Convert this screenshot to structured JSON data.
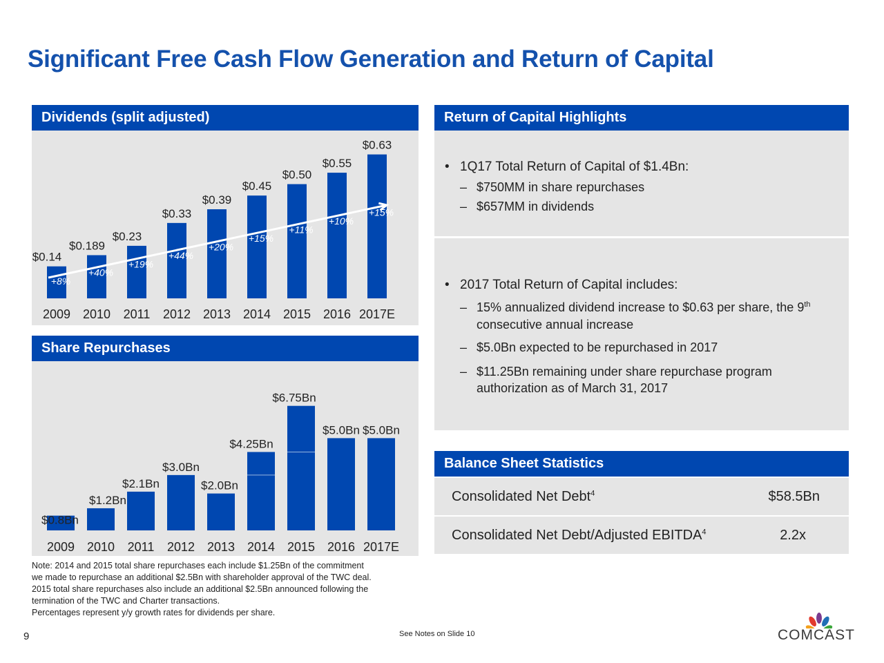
{
  "title": "Significant Free Cash Flow Generation and Return of Capital",
  "dividends_panel": {
    "header": "Dividends (split adjusted)"
  },
  "repurchases_panel": {
    "header": "Share Repurchases"
  },
  "highlights_panel": {
    "header": "Return of Capital Highlights",
    "bullet1": "1Q17 Total Return of Capital of $1.4Bn:",
    "bullet1_subs": [
      "$750MM in share repurchases",
      "$657MM in dividends"
    ],
    "bullet2": "2017 Total Return of Capital includes:",
    "bullet2_sub1_line1_pre": "15% annualized dividend increase to $0.63 per share, the 9",
    "bullet2_sub1_sup": "th",
    "bullet2_sub1_line2": "consecutive annual increase",
    "bullet2_sub2": "$5.0Bn expected to be repurchased in 2017",
    "bullet2_sub3_line1": "$11.25Bn remaining under share repurchase program",
    "bullet2_sub3_line2": "authorization as of March 31, 2017"
  },
  "balance_panel": {
    "header": "Balance Sheet Statistics",
    "rows": [
      {
        "label": "Consolidated Net Debt",
        "sup": "4",
        "value": "$58.5Bn"
      },
      {
        "label": "Consolidated Net Debt/Adjusted EBITDA",
        "sup": "4",
        "value": "2.2x"
      }
    ]
  },
  "note_lines": [
    "Note: 2014 and 2015 total share repurchases each include $1.25Bn of the commitment",
    "we made to repurchase an additional $2.5Bn with shareholder approval of the TWC deal.",
    "2015 total share repurchases also include an additional $2.5Bn announced following the",
    "termination of the TWC and Charter transactions.",
    "Percentages represent y/y growth rates for dividends per share."
  ],
  "page_number": "9",
  "see_notes": "See Notes on Slide 10",
  "logo_text": "COMCAST",
  "colors": {
    "bar": "#0047b0",
    "header": "#0047b0",
    "title": "#1451ac",
    "panel_bg": "#e5e5e5"
  },
  "chart_data": [
    {
      "type": "bar",
      "title": "Dividends (split adjusted)",
      "categories": [
        "2009",
        "2010",
        "2011",
        "2012",
        "2013",
        "2014",
        "2015",
        "2016",
        "2017E"
      ],
      "values": [
        0.14,
        0.189,
        0.23,
        0.33,
        0.39,
        0.45,
        0.5,
        0.55,
        0.63
      ],
      "value_labels": [
        "$0.14",
        "$0.189",
        "$0.23",
        "$0.33",
        "$0.39",
        "$0.45",
        "$0.50",
        "$0.55",
        "$0.63"
      ],
      "growth_labels": [
        "+8%",
        "+40%",
        "+19%",
        "+44%",
        "+20%",
        "+15%",
        "+11%",
        "+10%",
        "+15%"
      ],
      "ylim": [
        0,
        0.65
      ],
      "grid": false
    },
    {
      "type": "bar",
      "title": "Share Repurchases",
      "categories": [
        "2009",
        "2010",
        "2011",
        "2012",
        "2013",
        "2014",
        "2015",
        "2016",
        "2017E"
      ],
      "values": [
        0.8,
        1.2,
        2.1,
        3.0,
        2.0,
        4.25,
        6.75,
        5.0,
        5.0
      ],
      "value_labels": [
        "$0.8Bn",
        "$1.2Bn",
        "$2.1Bn",
        "$3.0Bn",
        "$2.0Bn",
        "$4.25Bn",
        "$6.75Bn",
        "$5.0Bn",
        "$5.0Bn"
      ],
      "stacked_split_2014": [
        3.0,
        1.25
      ],
      "stacked_split_2015": [
        4.25,
        2.5
      ],
      "ylim": [
        0,
        7
      ],
      "grid": false
    }
  ]
}
